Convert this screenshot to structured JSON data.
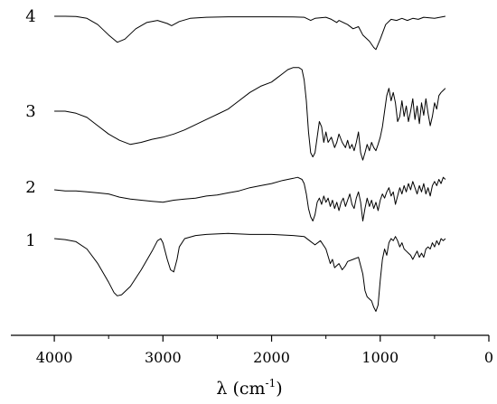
{
  "chart_data": {
    "type": "line",
    "title": "",
    "xlabel": "λ (cm",
    "xlabel_sup": "-1",
    "xlabel_close": ")",
    "xlim": [
      4400,
      0
    ],
    "x_reversed": true,
    "x_ticks": [
      {
        "value": 4000,
        "label": "4000"
      },
      {
        "value": 3000,
        "label": "3000"
      },
      {
        "value": 2000,
        "label": "2000"
      },
      {
        "value": 1000,
        "label": "1000"
      },
      {
        "value": 0,
        "label": "0"
      }
    ],
    "ylabel": "",
    "y_axis_shown": false,
    "line_color": "#000000",
    "series": [
      {
        "name": "4",
        "points": [
          [
            4000,
            0.0
          ],
          [
            3900,
            0.0
          ],
          [
            3800,
            -0.2
          ],
          [
            3700,
            -2.0
          ],
          [
            3600,
            -8.0
          ],
          [
            3500,
            -18.0
          ],
          [
            3420,
            -25.0
          ],
          [
            3350,
            -22.0
          ],
          [
            3250,
            -12.0
          ],
          [
            3150,
            -6.0
          ],
          [
            3050,
            -4.0
          ],
          [
            2960,
            -7.0
          ],
          [
            2920,
            -9.0
          ],
          [
            2850,
            -5.0
          ],
          [
            2750,
            -2.0
          ],
          [
            2600,
            -1.0
          ],
          [
            2400,
            -0.5
          ],
          [
            2200,
            -0.5
          ],
          [
            2000,
            -0.5
          ],
          [
            1800,
            -0.6
          ],
          [
            1700,
            -1.0
          ],
          [
            1640,
            -4.0
          ],
          [
            1600,
            -2.0
          ],
          [
            1500,
            -1.0
          ],
          [
            1450,
            -3.0
          ],
          [
            1400,
            -6.0
          ],
          [
            1380,
            -4.0
          ],
          [
            1300,
            -8.0
          ],
          [
            1250,
            -12.0
          ],
          [
            1200,
            -10.0
          ],
          [
            1160,
            -18.0
          ],
          [
            1100,
            -24.0
          ],
          [
            1060,
            -30.0
          ],
          [
            1040,
            -32.0
          ],
          [
            1000,
            -22.0
          ],
          [
            950,
            -8.0
          ],
          [
            900,
            -3.0
          ],
          [
            850,
            -4.0
          ],
          [
            800,
            -2.0
          ],
          [
            750,
            -4.0
          ],
          [
            700,
            -2.0
          ],
          [
            650,
            -3.0
          ],
          [
            600,
            -1.0
          ],
          [
            500,
            -2.0
          ],
          [
            400,
            0.0
          ]
        ]
      },
      {
        "name": "3",
        "points": [
          [
            4000,
            0.0
          ],
          [
            3900,
            0.0
          ],
          [
            3800,
            -2.0
          ],
          [
            3700,
            -6.0
          ],
          [
            3600,
            -14.0
          ],
          [
            3500,
            -22.0
          ],
          [
            3400,
            -28.0
          ],
          [
            3300,
            -32.0
          ],
          [
            3200,
            -30.0
          ],
          [
            3100,
            -27.0
          ],
          [
            3000,
            -25.0
          ],
          [
            2900,
            -22.0
          ],
          [
            2800,
            -18.0
          ],
          [
            2700,
            -13.0
          ],
          [
            2600,
            -8.0
          ],
          [
            2500,
            -3.0
          ],
          [
            2400,
            2.0
          ],
          [
            2300,
            10.0
          ],
          [
            2200,
            18.0
          ],
          [
            2100,
            24.0
          ],
          [
            2000,
            28.0
          ],
          [
            1950,
            32.0
          ],
          [
            1900,
            36.0
          ],
          [
            1850,
            40.0
          ],
          [
            1800,
            42.0
          ],
          [
            1750,
            42.0
          ],
          [
            1720,
            40.0
          ],
          [
            1700,
            30.0
          ],
          [
            1680,
            10.0
          ],
          [
            1660,
            -20.0
          ],
          [
            1640,
            -40.0
          ],
          [
            1620,
            -44.0
          ],
          [
            1600,
            -40.0
          ],
          [
            1580,
            -25.0
          ],
          [
            1560,
            -10.0
          ],
          [
            1540,
            -15.0
          ],
          [
            1520,
            -30.0
          ],
          [
            1500,
            -20.0
          ],
          [
            1480,
            -30.0
          ],
          [
            1450,
            -25.0
          ],
          [
            1420,
            -35.0
          ],
          [
            1400,
            -30.0
          ],
          [
            1380,
            -22.0
          ],
          [
            1350,
            -30.0
          ],
          [
            1320,
            -35.0
          ],
          [
            1300,
            -28.0
          ],
          [
            1280,
            -36.0
          ],
          [
            1260,
            -32.0
          ],
          [
            1240,
            -38.0
          ],
          [
            1220,
            -30.0
          ],
          [
            1200,
            -20.0
          ],
          [
            1180,
            -40.0
          ],
          [
            1160,
            -47.0
          ],
          [
            1140,
            -40.0
          ],
          [
            1120,
            -32.0
          ],
          [
            1100,
            -38.0
          ],
          [
            1080,
            -30.0
          ],
          [
            1060,
            -35.0
          ],
          [
            1040,
            -38.0
          ],
          [
            1020,
            -32.0
          ],
          [
            1000,
            -25.0
          ],
          [
            980,
            -15.0
          ],
          [
            960,
            0.0
          ],
          [
            940,
            15.0
          ],
          [
            920,
            22.0
          ],
          [
            900,
            10.0
          ],
          [
            880,
            18.0
          ],
          [
            860,
            8.0
          ],
          [
            840,
            -10.0
          ],
          [
            820,
            -5.0
          ],
          [
            800,
            10.0
          ],
          [
            780,
            -5.0
          ],
          [
            760,
            5.0
          ],
          [
            740,
            -10.0
          ],
          [
            720,
            0.0
          ],
          [
            700,
            12.0
          ],
          [
            680,
            -8.0
          ],
          [
            660,
            5.0
          ],
          [
            640,
            -12.0
          ],
          [
            620,
            8.0
          ],
          [
            600,
            -4.0
          ],
          [
            580,
            12.0
          ],
          [
            560,
            -2.0
          ],
          [
            540,
            -14.0
          ],
          [
            520,
            -5.0
          ],
          [
            500,
            8.0
          ],
          [
            480,
            2.0
          ],
          [
            460,
            15.0
          ],
          [
            440,
            18.0
          ],
          [
            420,
            20.0
          ],
          [
            400,
            22.0
          ]
        ]
      },
      {
        "name": "2",
        "points": [
          [
            4000,
            0.0
          ],
          [
            3900,
            -1.0
          ],
          [
            3800,
            -1.0
          ],
          [
            3700,
            -2.0
          ],
          [
            3600,
            -3.0
          ],
          [
            3500,
            -4.0
          ],
          [
            3400,
            -7.0
          ],
          [
            3300,
            -9.0
          ],
          [
            3200,
            -10.0
          ],
          [
            3100,
            -11.0
          ],
          [
            3000,
            -12.0
          ],
          [
            2900,
            -10.0
          ],
          [
            2800,
            -9.0
          ],
          [
            2700,
            -8.0
          ],
          [
            2600,
            -6.0
          ],
          [
            2500,
            -5.0
          ],
          [
            2400,
            -3.0
          ],
          [
            2300,
            -1.0
          ],
          [
            2200,
            2.0
          ],
          [
            2100,
            4.0
          ],
          [
            2000,
            6.0
          ],
          [
            1900,
            9.0
          ],
          [
            1800,
            11.0
          ],
          [
            1760,
            12.0
          ],
          [
            1720,
            10.0
          ],
          [
            1700,
            6.0
          ],
          [
            1680,
            -4.0
          ],
          [
            1660,
            -18.0
          ],
          [
            1640,
            -26.0
          ],
          [
            1620,
            -30.0
          ],
          [
            1600,
            -24.0
          ],
          [
            1580,
            -12.0
          ],
          [
            1560,
            -8.0
          ],
          [
            1540,
            -14.0
          ],
          [
            1520,
            -6.0
          ],
          [
            1500,
            -12.0
          ],
          [
            1480,
            -8.0
          ],
          [
            1460,
            -16.0
          ],
          [
            1440,
            -10.0
          ],
          [
            1420,
            -18.0
          ],
          [
            1400,
            -12.0
          ],
          [
            1380,
            -20.0
          ],
          [
            1360,
            -12.0
          ],
          [
            1340,
            -8.0
          ],
          [
            1320,
            -16.0
          ],
          [
            1300,
            -10.0
          ],
          [
            1280,
            -4.0
          ],
          [
            1260,
            -14.0
          ],
          [
            1240,
            -18.0
          ],
          [
            1220,
            -8.0
          ],
          [
            1200,
            -2.0
          ],
          [
            1180,
            -12.0
          ],
          [
            1160,
            -30.0
          ],
          [
            1140,
            -18.0
          ],
          [
            1120,
            -8.0
          ],
          [
            1100,
            -16.0
          ],
          [
            1080,
            -10.0
          ],
          [
            1060,
            -18.0
          ],
          [
            1040,
            -12.0
          ],
          [
            1020,
            -20.0
          ],
          [
            1000,
            -10.0
          ],
          [
            980,
            -4.0
          ],
          [
            960,
            -8.0
          ],
          [
            940,
            -2.0
          ],
          [
            920,
            2.0
          ],
          [
            900,
            -6.0
          ],
          [
            880,
            -2.0
          ],
          [
            860,
            -14.0
          ],
          [
            840,
            -6.0
          ],
          [
            820,
            2.0
          ],
          [
            800,
            -4.0
          ],
          [
            780,
            4.0
          ],
          [
            760,
            -2.0
          ],
          [
            740,
            6.0
          ],
          [
            720,
            0.0
          ],
          [
            700,
            8.0
          ],
          [
            680,
            2.0
          ],
          [
            660,
            -4.0
          ],
          [
            640,
            4.0
          ],
          [
            620,
            -2.0
          ],
          [
            600,
            6.0
          ],
          [
            580,
            -4.0
          ],
          [
            560,
            2.0
          ],
          [
            540,
            -6.0
          ],
          [
            520,
            4.0
          ],
          [
            500,
            8.0
          ],
          [
            480,
            4.0
          ],
          [
            460,
            10.0
          ],
          [
            440,
            6.0
          ],
          [
            420,
            12.0
          ],
          [
            400,
            10.0
          ]
        ]
      },
      {
        "name": "1",
        "points": [
          [
            4000,
            0.0
          ],
          [
            3900,
            -1.0
          ],
          [
            3800,
            -3.0
          ],
          [
            3700,
            -10.0
          ],
          [
            3600,
            -24.0
          ],
          [
            3500,
            -42.0
          ],
          [
            3450,
            -52.0
          ],
          [
            3420,
            -55.0
          ],
          [
            3380,
            -54.0
          ],
          [
            3300,
            -46.0
          ],
          [
            3200,
            -30.0
          ],
          [
            3100,
            -12.0
          ],
          [
            3050,
            -2.0
          ],
          [
            3020,
            0.0
          ],
          [
            3000,
            -4.0
          ],
          [
            2960,
            -20.0
          ],
          [
            2930,
            -30.0
          ],
          [
            2900,
            -32.0
          ],
          [
            2870,
            -20.0
          ],
          [
            2850,
            -8.0
          ],
          [
            2800,
            0.0
          ],
          [
            2700,
            3.0
          ],
          [
            2600,
            4.0
          ],
          [
            2400,
            5.0
          ],
          [
            2200,
            4.0
          ],
          [
            2000,
            4.0
          ],
          [
            1800,
            3.0
          ],
          [
            1700,
            2.0
          ],
          [
            1650,
            -2.0
          ],
          [
            1600,
            -6.0
          ],
          [
            1550,
            -2.0
          ],
          [
            1500,
            -10.0
          ],
          [
            1460,
            -24.0
          ],
          [
            1440,
            -20.0
          ],
          [
            1420,
            -28.0
          ],
          [
            1400,
            -26.0
          ],
          [
            1380,
            -24.0
          ],
          [
            1350,
            -30.0
          ],
          [
            1320,
            -26.0
          ],
          [
            1300,
            -22.0
          ],
          [
            1250,
            -20.0
          ],
          [
            1200,
            -18.0
          ],
          [
            1160,
            -34.0
          ],
          [
            1140,
            -50.0
          ],
          [
            1120,
            -56.0
          ],
          [
            1100,
            -58.0
          ],
          [
            1080,
            -60.0
          ],
          [
            1060,
            -66.0
          ],
          [
            1040,
            -70.0
          ],
          [
            1020,
            -64.0
          ],
          [
            1000,
            -40.0
          ],
          [
            980,
            -20.0
          ],
          [
            960,
            -10.0
          ],
          [
            940,
            -16.0
          ],
          [
            920,
            -4.0
          ],
          [
            900,
            0.0
          ],
          [
            880,
            -2.0
          ],
          [
            860,
            2.0
          ],
          [
            840,
            -2.0
          ],
          [
            820,
            -8.0
          ],
          [
            800,
            -4.0
          ],
          [
            780,
            -10.0
          ],
          [
            760,
            -12.0
          ],
          [
            740,
            -14.0
          ],
          [
            720,
            -16.0
          ],
          [
            700,
            -20.0
          ],
          [
            680,
            -16.0
          ],
          [
            660,
            -12.0
          ],
          [
            640,
            -18.0
          ],
          [
            620,
            -14.0
          ],
          [
            600,
            -18.0
          ],
          [
            580,
            -10.0
          ],
          [
            560,
            -8.0
          ],
          [
            540,
            -10.0
          ],
          [
            520,
            -4.0
          ],
          [
            500,
            -8.0
          ],
          [
            480,
            -2.0
          ],
          [
            460,
            -6.0
          ],
          [
            440,
            0.0
          ],
          [
            420,
            -2.0
          ],
          [
            400,
            0.0
          ]
        ]
      }
    ]
  }
}
